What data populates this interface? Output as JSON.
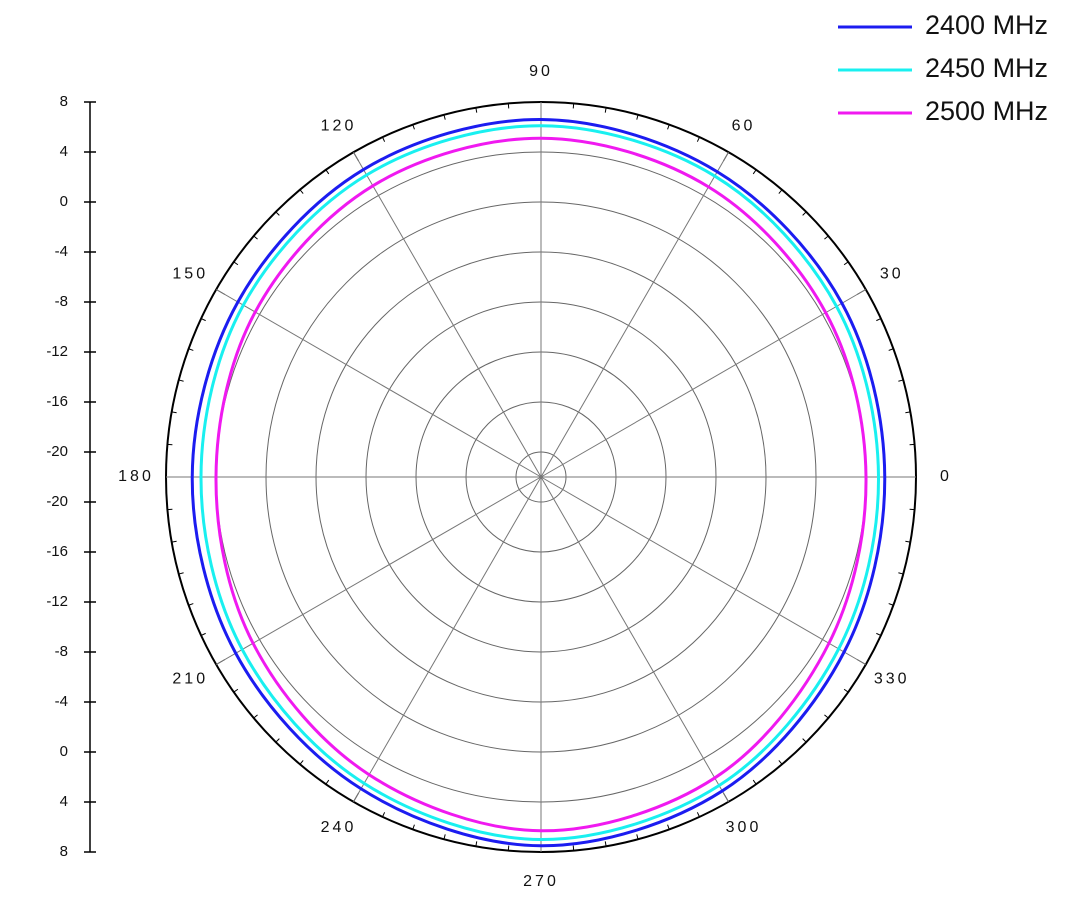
{
  "chart_data": {
    "type": "polar",
    "theta": [
      0,
      30,
      60,
      90,
      120,
      150,
      180,
      210,
      240,
      270,
      300,
      330
    ],
    "thetaticks": [
      0,
      30,
      60,
      90,
      120,
      150,
      180,
      210,
      240,
      270,
      300,
      330
    ],
    "rlim": [
      -22,
      8
    ],
    "rticks": [
      -20,
      -16,
      -12,
      -8,
      -4,
      0,
      4,
      8
    ],
    "grid": true,
    "legend": "upper right",
    "series": [
      {
        "name": "2400 MHz",
        "color": "#1c1cf0",
        "values": [
          5.5,
          5.8,
          6.2,
          6.6,
          6.4,
          6.0,
          5.9,
          6.2,
          6.8,
          7.5,
          7.0,
          6.0
        ]
      },
      {
        "name": "2450 MHz",
        "color": "#19f0f0",
        "values": [
          5.0,
          5.3,
          5.8,
          6.1,
          5.9,
          5.5,
          5.2,
          5.6,
          6.3,
          7.0,
          6.5,
          5.5
        ]
      },
      {
        "name": "2500 MHz",
        "color": "#f019f0",
        "values": [
          4.0,
          4.3,
          4.8,
          5.1,
          4.9,
          4.4,
          4.0,
          4.6,
          5.5,
          6.3,
          5.8,
          4.6
        ]
      }
    ]
  }
}
